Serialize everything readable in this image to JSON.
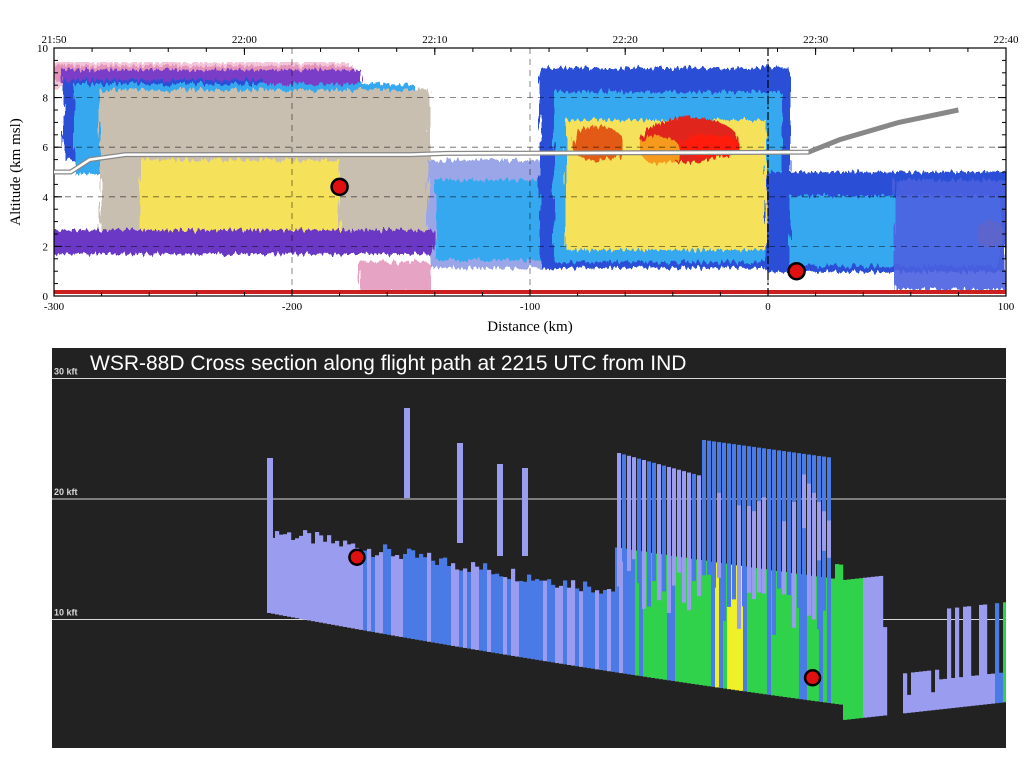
{
  "chart_data": [
    {
      "type": "heatmap",
      "title": "",
      "xlabel": "Distance (km)",
      "ylabel": "Altitude (km msl)",
      "xlim": [
        -300,
        100
      ],
      "ylim": [
        0,
        10
      ],
      "x_ticks": [
        "-300",
        "-200",
        "-100",
        "0",
        "100"
      ],
      "y_ticks": [
        "0",
        "2",
        "4",
        "6",
        "8",
        "10"
      ],
      "top_ticks": [
        "21:50",
        "22:00",
        "22:10",
        "22:20",
        "22:30",
        "22:40"
      ],
      "flight_track": [
        {
          "x": -300,
          "y": 5.0
        },
        {
          "x": -293,
          "y": 5.0
        },
        {
          "x": -285,
          "y": 5.5
        },
        {
          "x": -270,
          "y": 5.7
        },
        {
          "x": -150,
          "y": 5.7
        },
        {
          "x": -135,
          "y": 5.75
        },
        {
          "x": 17,
          "y": 5.8
        },
        {
          "x": 30,
          "y": 6.3
        },
        {
          "x": 55,
          "y": 7.0
        },
        {
          "x": 80,
          "y": 7.5
        }
      ],
      "markers": [
        {
          "x": -180,
          "y": 4.4
        },
        {
          "x": 12,
          "y": 1.0
        }
      ],
      "reference_lines": [
        {
          "x": 0,
          "style": "dash-dot"
        }
      ]
    },
    {
      "type": "heatmap",
      "title": "WSR-88D Cross section along flight path at 2215 UTC from IND",
      "y_ticks": [
        "30 kft",
        "20 kft",
        "10 kft"
      ],
      "y_tick_values": [
        30,
        20,
        10
      ],
      "markers": [
        {
          "x": -180,
          "altitude_kft": 15
        },
        {
          "x": 12,
          "altitude_kft": 5
        }
      ],
      "colors": {
        "background": "#222222",
        "light": "#9a9cf0",
        "medium": "#4a7ae6",
        "high": "#2fd24a",
        "peak": "#f0f02a"
      }
    }
  ],
  "colors": {
    "marker_fill": "#e01010",
    "marker_stroke": "#000000",
    "track": "#ffffff",
    "track_end": "#888888"
  }
}
